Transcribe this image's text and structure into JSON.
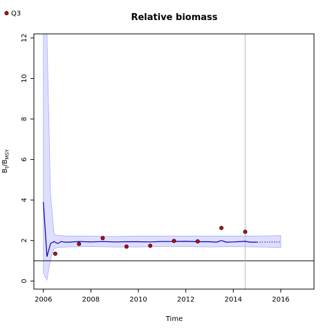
{
  "chart_data": {
    "type": "line",
    "title": "Relative biomass",
    "xlabel": "Time",
    "ylabel": {
      "main": "B",
      "sub1": "t",
      "sep": "/B",
      "sub2": "MSY"
    },
    "xlim": [
      2005.6,
      2017.4
    ],
    "ylim": [
      -0.4,
      12.2
    ],
    "x_ticks": [
      2006,
      2008,
      2010,
      2012,
      2014,
      2016
    ],
    "y_ticks": [
      0,
      2,
      4,
      6,
      8,
      10,
      12
    ],
    "reference_line_y": 1,
    "vertical_line_x": 2014.5,
    "legend": {
      "position": "top-left",
      "entries": [
        {
          "label": "Q3",
          "color": "#cc0000"
        }
      ]
    },
    "colors": {
      "line": "#0000aa",
      "band": "#ccccff",
      "band_edge": "#aaaaff",
      "points": "#cc0000",
      "vline": "#bbbbbb"
    },
    "estimate": {
      "x": [
        2006.0,
        2006.15,
        2006.3,
        2006.45,
        2006.6,
        2006.75,
        2006.9,
        2007.1,
        2007.5,
        2008.0,
        2008.5,
        2009.0,
        2009.5,
        2010.0,
        2010.5,
        2011.0,
        2011.5,
        2012.0,
        2012.5,
        2013.0,
        2013.3,
        2013.5,
        2013.7,
        2014.0,
        2014.5,
        2014.7,
        2015.0
      ],
      "y": [
        3.9,
        1.2,
        1.85,
        1.95,
        1.85,
        1.95,
        1.92,
        1.92,
        1.95,
        1.93,
        1.95,
        1.93,
        1.94,
        1.94,
        1.93,
        1.95,
        1.95,
        1.96,
        1.94,
        1.94,
        1.92,
        2.0,
        1.92,
        1.93,
        1.96,
        1.92,
        1.92
      ]
    },
    "prediction": {
      "x": [
        2015.0,
        2016.0
      ],
      "y": [
        1.92,
        1.93
      ]
    },
    "confidence_band": {
      "x": [
        2006.0,
        2006.15,
        2006.3,
        2006.45,
        2006.6,
        2007.0,
        2008.0,
        2009.0,
        2010.0,
        2011.0,
        2012.0,
        2013.0,
        2014.0,
        2015.0,
        2016.0
      ],
      "lower": [
        0.4,
        0.05,
        1.1,
        1.6,
        1.65,
        1.68,
        1.7,
        1.68,
        1.68,
        1.7,
        1.7,
        1.68,
        1.7,
        1.68,
        1.66
      ],
      "upper": [
        12.2,
        12.2,
        4.3,
        2.3,
        2.25,
        2.22,
        2.22,
        2.2,
        2.22,
        2.22,
        2.22,
        2.22,
        2.22,
        2.22,
        2.24
      ]
    },
    "series": [
      {
        "name": "Q3",
        "x": [
          2006.5,
          2007.5,
          2008.5,
          2009.5,
          2010.5,
          2011.5,
          2012.5,
          2013.5,
          2014.5
        ],
        "y": [
          1.35,
          1.83,
          2.12,
          1.7,
          1.74,
          1.98,
          1.96,
          2.62,
          2.43
        ]
      }
    ]
  }
}
